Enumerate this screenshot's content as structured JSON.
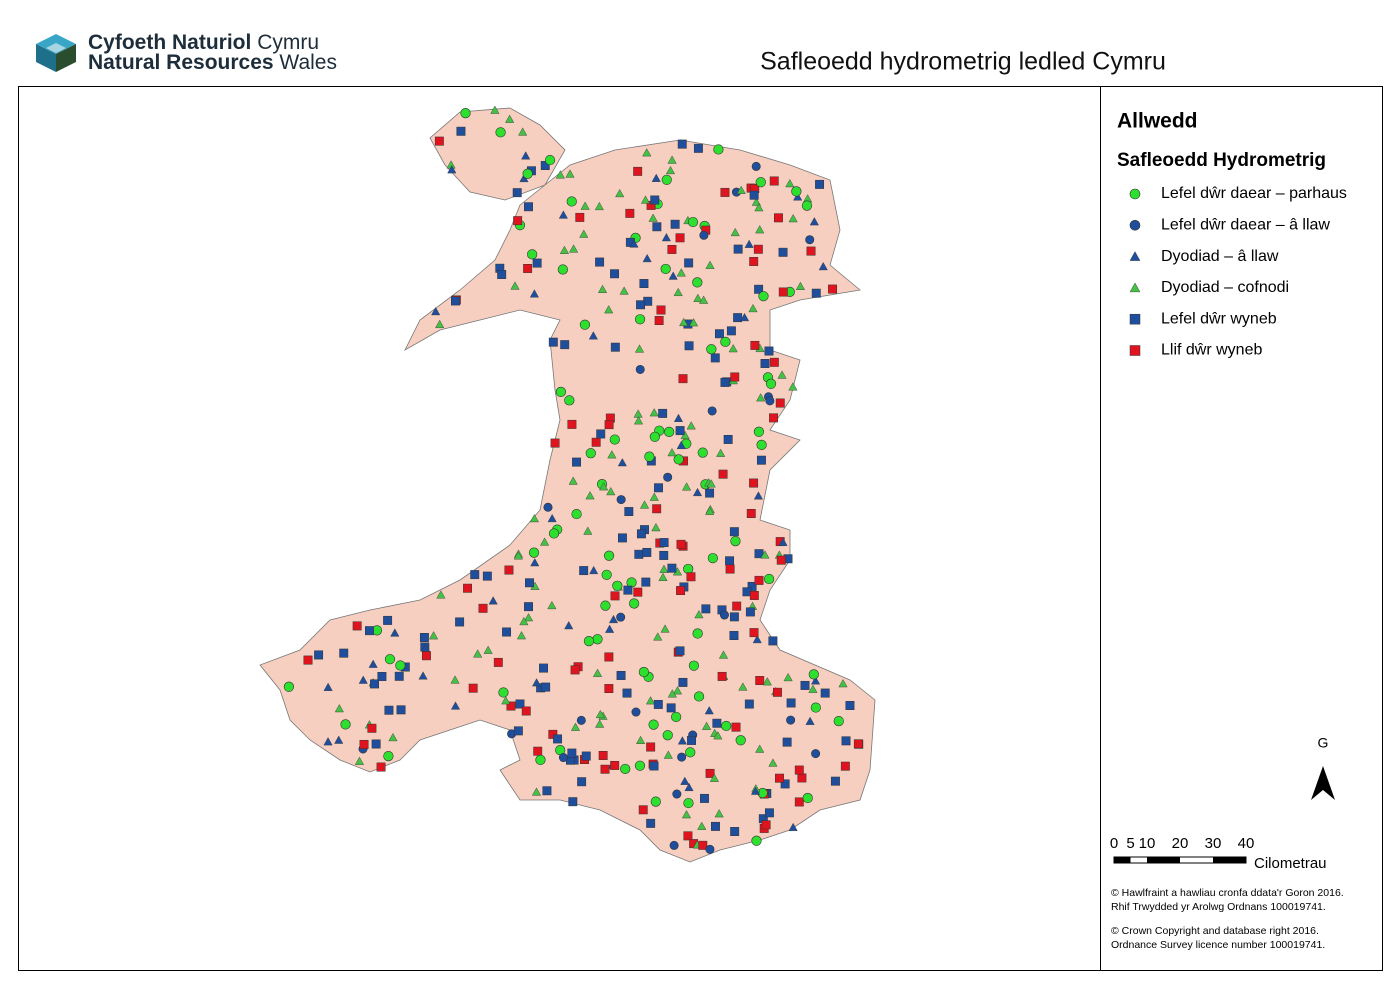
{
  "header": {
    "logo_line1_bold": "Cyfoeth Naturiol",
    "logo_line1": "Cymru",
    "logo_line2_bold": "Natural Resources",
    "logo_line2": "Wales",
    "title": "Safleoedd hydrometrig ledled Cymru"
  },
  "legend": {
    "title": "Allwedd",
    "subtitle": "Safleoedd Hydrometrig",
    "items": [
      "Lefel dŵr daear – parhaus",
      "Lefel dŵr daear – â llaw",
      "Dyodiad – â llaw",
      "Dyodiad – cofnodi",
      "Lefel dŵr wyneb",
      "Llif dŵr wyneb"
    ]
  },
  "north": "G",
  "scale": {
    "labels": [
      "0",
      "5",
      "10",
      "20",
      "30",
      "40"
    ],
    "unit": "Cilometrau"
  },
  "copyright": [
    "© Hawlfraint a hawliau cronfa ddata'r Goron 2016.",
    "Rhif Trwydded yr Arolwg Ordnans 100019741.",
    "© Crown Copyright and database right 2016.",
    "Ordnance Survey licence number 100019741."
  ]
}
